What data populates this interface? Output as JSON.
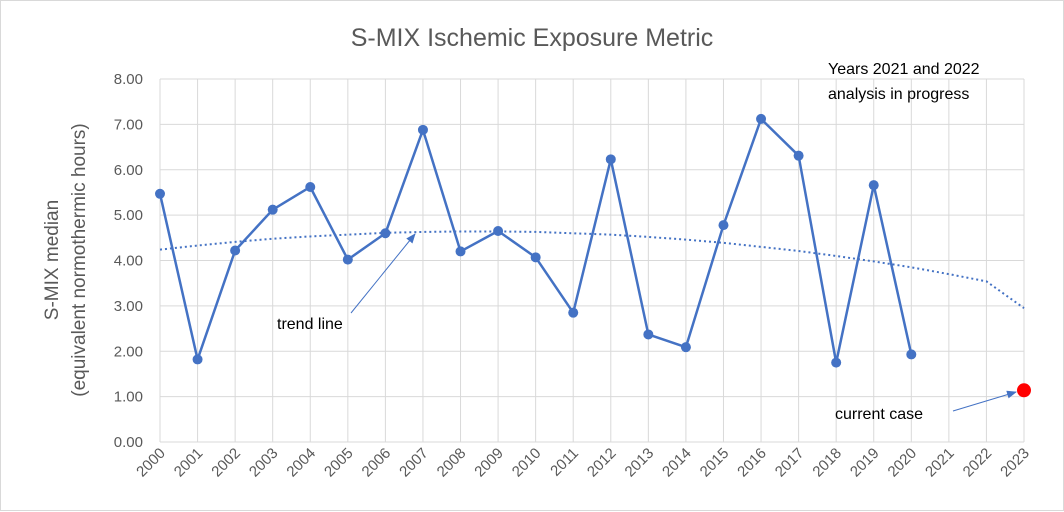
{
  "chart_data": {
    "type": "line",
    "title": "S-MIX Ischemic Exposure Metric",
    "ylabel_line1": "S-MIX median",
    "ylabel_line2": "(equivalent normothermic hours)",
    "xlabel": "",
    "ylim": [
      0,
      8
    ],
    "yticks": [
      "0.00",
      "1.00",
      "2.00",
      "3.00",
      "4.00",
      "5.00",
      "6.00",
      "7.00",
      "8.00"
    ],
    "categories": [
      "2000",
      "2001",
      "2002",
      "2003",
      "2004",
      "2005",
      "2006",
      "2007",
      "2008",
      "2009",
      "2010",
      "2011",
      "2012",
      "2013",
      "2014",
      "2015",
      "2016",
      "2017",
      "2018",
      "2019",
      "2020",
      "2021",
      "2022",
      "2023"
    ],
    "grid": true,
    "series": [
      {
        "values": [
          5.47,
          1.82,
          4.22,
          5.12,
          5.62,
          4.02,
          4.6,
          6.88,
          4.2,
          4.65,
          4.07,
          2.85,
          6.23,
          2.37,
          2.09,
          4.78,
          7.12,
          6.31,
          1.75,
          5.66,
          1.93,
          null,
          null,
          null
        ],
        "color": "#4472c4"
      }
    ],
    "trend": {
      "style": "dotted",
      "color": "#4472c4",
      "values": [
        4.24,
        4.33,
        4.41,
        4.48,
        4.53,
        4.57,
        4.61,
        4.63,
        4.64,
        4.64,
        4.63,
        4.6,
        4.57,
        4.52,
        4.46,
        4.39,
        4.3,
        4.21,
        4.1,
        3.98,
        3.85,
        3.7,
        3.54,
        2.95
      ]
    },
    "current_case": {
      "x": "2023",
      "y": 1.14,
      "color": "#ff0000"
    },
    "annotations": {
      "note_line1": "Years 2021 and 2022",
      "note_line2": "analysis in progress",
      "trend_label": "trend line",
      "current_label": "current case"
    }
  }
}
